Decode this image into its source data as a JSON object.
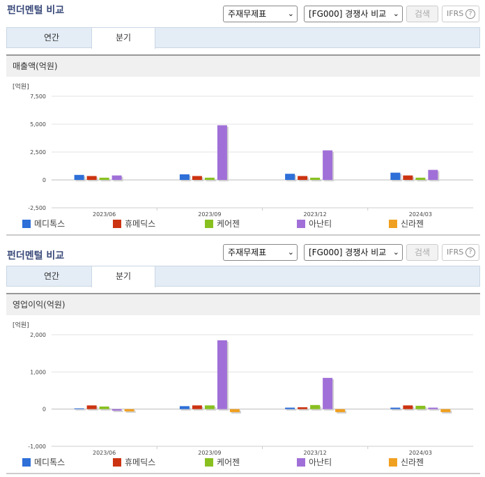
{
  "sections": [
    {
      "title": "펀더멘털 비교",
      "select1": "주재무제표",
      "select2": "[FG000] 경쟁사 비교",
      "search_label": "검색",
      "ifrs_label": "IFRS",
      "ifrs_help": "?",
      "tabs": [
        "연간",
        "분기"
      ],
      "active_tab": "분기",
      "panel_title": "매출액(억원)",
      "unit_label": "[억원]"
    },
    {
      "title": "펀더멘털 비교",
      "select1": "주재무제표",
      "select2": "[FG000] 경쟁사 비교",
      "search_label": "검색",
      "ifrs_label": "IFRS",
      "ifrs_help": "?",
      "tabs": [
        "연간",
        "분기"
      ],
      "active_tab": "분기",
      "panel_title": "영업이익(억원)",
      "unit_label": "[억원]"
    }
  ],
  "legend": [
    {
      "name": "메디톡스",
      "color": "#2e6fd8"
    },
    {
      "name": "휴메딕스",
      "color": "#cc3311"
    },
    {
      "name": "케어젠",
      "color": "#88c020"
    },
    {
      "name": "아난티",
      "color": "#a070d8"
    },
    {
      "name": "신라젠",
      "color": "#f0a020"
    }
  ],
  "chart_data": [
    {
      "type": "bar",
      "title": "매출액(억원)",
      "ylabel": "[억원]",
      "categories": [
        "2023/06",
        "2023/09",
        "2023/12",
        "2024/03"
      ],
      "ylim": [
        -2500,
        7500
      ],
      "yticks": [
        "7,500",
        "5,000",
        "2,500",
        "0",
        "-2,500"
      ],
      "ytick_values": [
        7500,
        5000,
        2500,
        0,
        -2500
      ],
      "series": [
        {
          "name": "메디톡스",
          "color": "#2e6fd8",
          "values": [
            450,
            500,
            550,
            650
          ]
        },
        {
          "name": "휴메딕스",
          "color": "#cc3311",
          "values": [
            350,
            350,
            350,
            400
          ]
        },
        {
          "name": "케어젠",
          "color": "#88c020",
          "values": [
            200,
            200,
            200,
            200
          ]
        },
        {
          "name": "아난티",
          "color": "#a070d8",
          "values": [
            400,
            4900,
            2650,
            900
          ]
        },
        {
          "name": "신라젠",
          "color": "#f0a020",
          "values": [
            0,
            0,
            0,
            0
          ]
        }
      ]
    },
    {
      "type": "bar",
      "title": "영업이익(억원)",
      "ylabel": "[억원]",
      "categories": [
        "2023/06",
        "2023/09",
        "2023/12",
        "2024/03"
      ],
      "ylim": [
        -1000,
        2000
      ],
      "yticks": [
        "2,000",
        "1,000",
        "0",
        "-1,000"
      ],
      "ytick_values": [
        2000,
        1000,
        0,
        -1000
      ],
      "series": [
        {
          "name": "메디톡스",
          "color": "#2e6fd8",
          "values": [
            20,
            80,
            40,
            40
          ]
        },
        {
          "name": "휴메딕스",
          "color": "#cc3311",
          "values": [
            100,
            100,
            50,
            100
          ]
        },
        {
          "name": "케어젠",
          "color": "#88c020",
          "values": [
            70,
            100,
            110,
            90
          ]
        },
        {
          "name": "아난티",
          "color": "#a070d8",
          "values": [
            -40,
            1850,
            840,
            40
          ]
        },
        {
          "name": "신라젠",
          "color": "#f0a020",
          "values": [
            -60,
            -80,
            -80,
            -80
          ]
        }
      ]
    }
  ]
}
